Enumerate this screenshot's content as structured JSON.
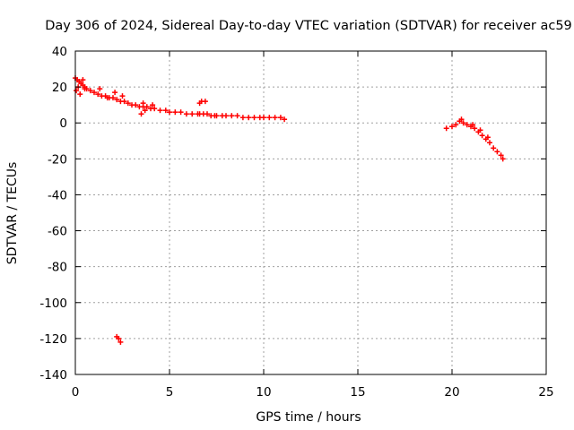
{
  "chart_data": {
    "type": "scatter",
    "title": "Day 306 of 2024, Sidereal Day-to-day VTEC variation (SDTVAR) for receiver ac59",
    "xlabel": "GPS time / hours",
    "ylabel": "SDTVAR / TECUs",
    "xlim": [
      0,
      25
    ],
    "ylim": [
      -140,
      40
    ],
    "xticks": [
      "0",
      "5",
      "10",
      "15",
      "20",
      "25"
    ],
    "yticks": [
      "40",
      "20",
      "0",
      "-20",
      "-40",
      "-60",
      "-80",
      "-100",
      "-120",
      "-140"
    ],
    "grid": true,
    "marker": "+",
    "color": "#ff0000",
    "series": [
      {
        "name": "SDTVAR",
        "x": [
          0.0,
          0.1,
          0.2,
          0.3,
          0.4,
          0.5,
          0.6,
          0.8,
          1.0,
          1.2,
          1.4,
          1.6,
          1.8,
          2.0,
          2.2,
          2.4,
          2.6,
          2.8,
          3.0,
          3.2,
          3.4,
          3.6,
          3.8,
          4.0,
          4.2,
          4.5,
          4.8,
          5.0,
          5.3,
          5.6,
          5.9,
          6.2,
          6.5,
          6.6,
          6.8,
          7.0,
          7.2,
          7.5,
          7.8,
          8.0,
          8.3,
          8.6,
          8.9,
          9.2,
          9.5,
          9.8,
          10.0,
          10.3,
          10.6,
          10.9,
          11.1,
          0.05,
          0.15,
          0.25,
          0.4,
          0.5,
          1.3,
          1.7,
          2.1,
          2.5,
          3.5,
          3.7,
          3.6,
          4.1,
          6.7,
          6.6,
          6.9,
          7.4,
          2.2,
          2.3,
          2.4,
          19.7,
          20.0,
          20.2,
          20.4,
          20.6,
          20.8,
          21.0,
          21.2,
          21.4,
          21.6,
          21.8,
          22.0,
          22.2,
          22.4,
          22.6,
          22.7,
          20.5,
          21.1,
          21.5,
          21.9
        ],
        "y": [
          25,
          24,
          23,
          22,
          21,
          20,
          19,
          18,
          17,
          16,
          15,
          15,
          14,
          14,
          13,
          12,
          12,
          11,
          10,
          10,
          9,
          9,
          9,
          8,
          8,
          7,
          7,
          6,
          6,
          6,
          5,
          5,
          5,
          5,
          5,
          5,
          4,
          4,
          4,
          4,
          4,
          4,
          3,
          3,
          3,
          3,
          3,
          3,
          3,
          3,
          2,
          18,
          20,
          16,
          24,
          19,
          19,
          14,
          17,
          15,
          5,
          7,
          11,
          10,
          12,
          11,
          12,
          4,
          -119,
          -120,
          -122,
          -3,
          -2,
          -1,
          1,
          0,
          -1,
          -2,
          -3,
          -5,
          -7,
          -9,
          -11,
          -14,
          -16,
          -18,
          -20,
          2,
          -1,
          -4,
          -8
        ]
      }
    ]
  }
}
